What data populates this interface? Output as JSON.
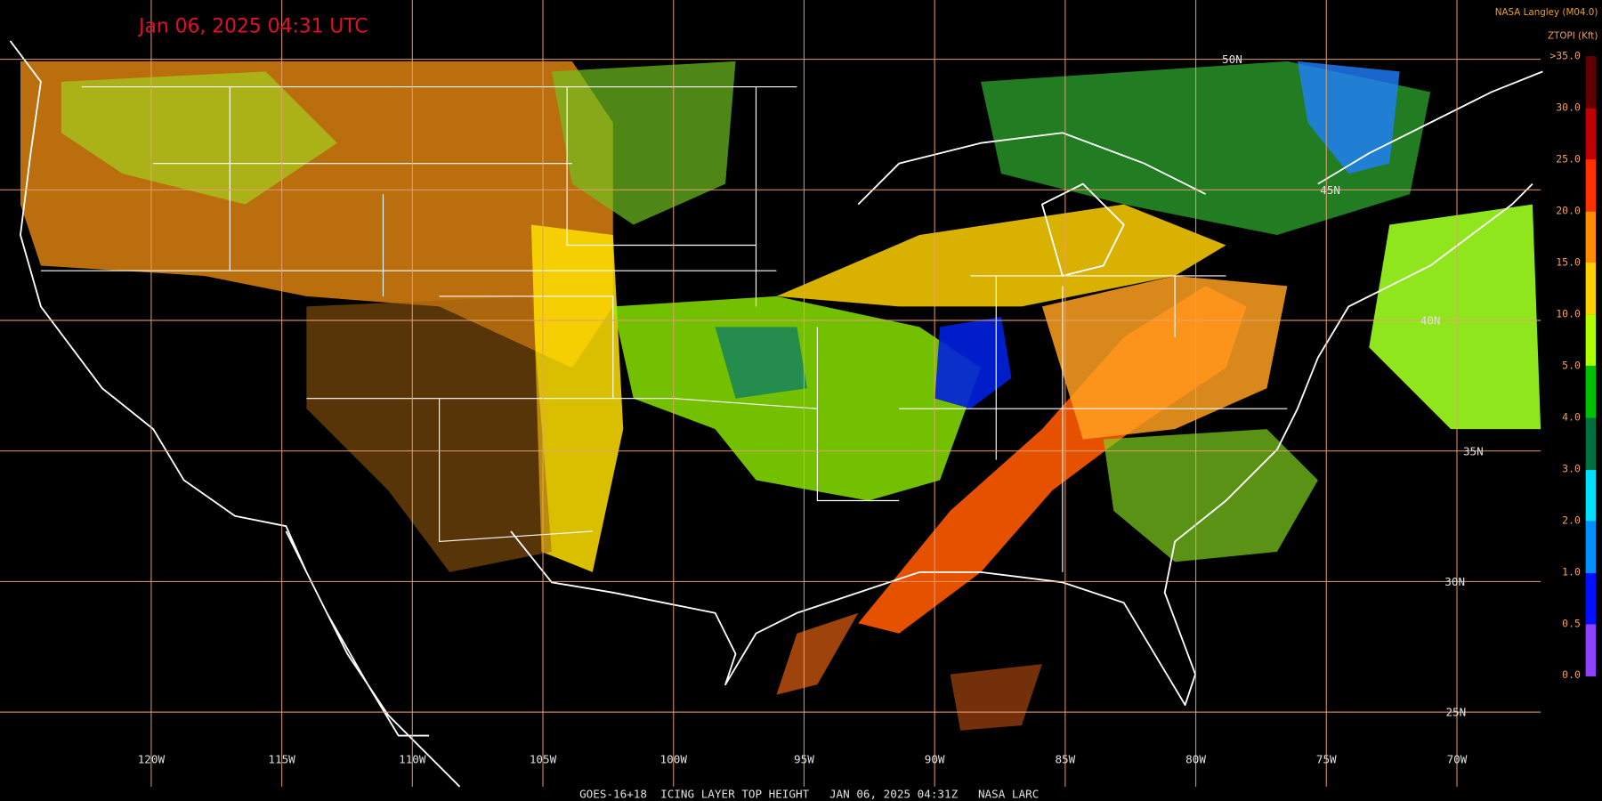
{
  "title": "Jan 06, 2025 04:31 UTC",
  "credit": "NASA Langley (M04.0)",
  "legend": {
    "title": "ZTOPI (Kft)",
    "labels": [
      ">35.0",
      "30.0",
      "25.0",
      "20.0",
      "15.0",
      "10.0",
      "5.0",
      "4.0",
      "3.0",
      "2.0",
      "1.0",
      "0.5",
      "0.0"
    ]
  },
  "longitudes": [
    "120W",
    "115W",
    "110W",
    "105W",
    "100W",
    "95W",
    "90W",
    "85W",
    "80W",
    "75W",
    "70W"
  ],
  "latitudes": [
    "50N",
    "45N",
    "40N",
    "35N",
    "30N",
    "25N"
  ],
  "footer": "GOES-16+18  ICING LAYER TOP HEIGHT   JAN 06, 2025 04:31Z   NASA LARC"
}
